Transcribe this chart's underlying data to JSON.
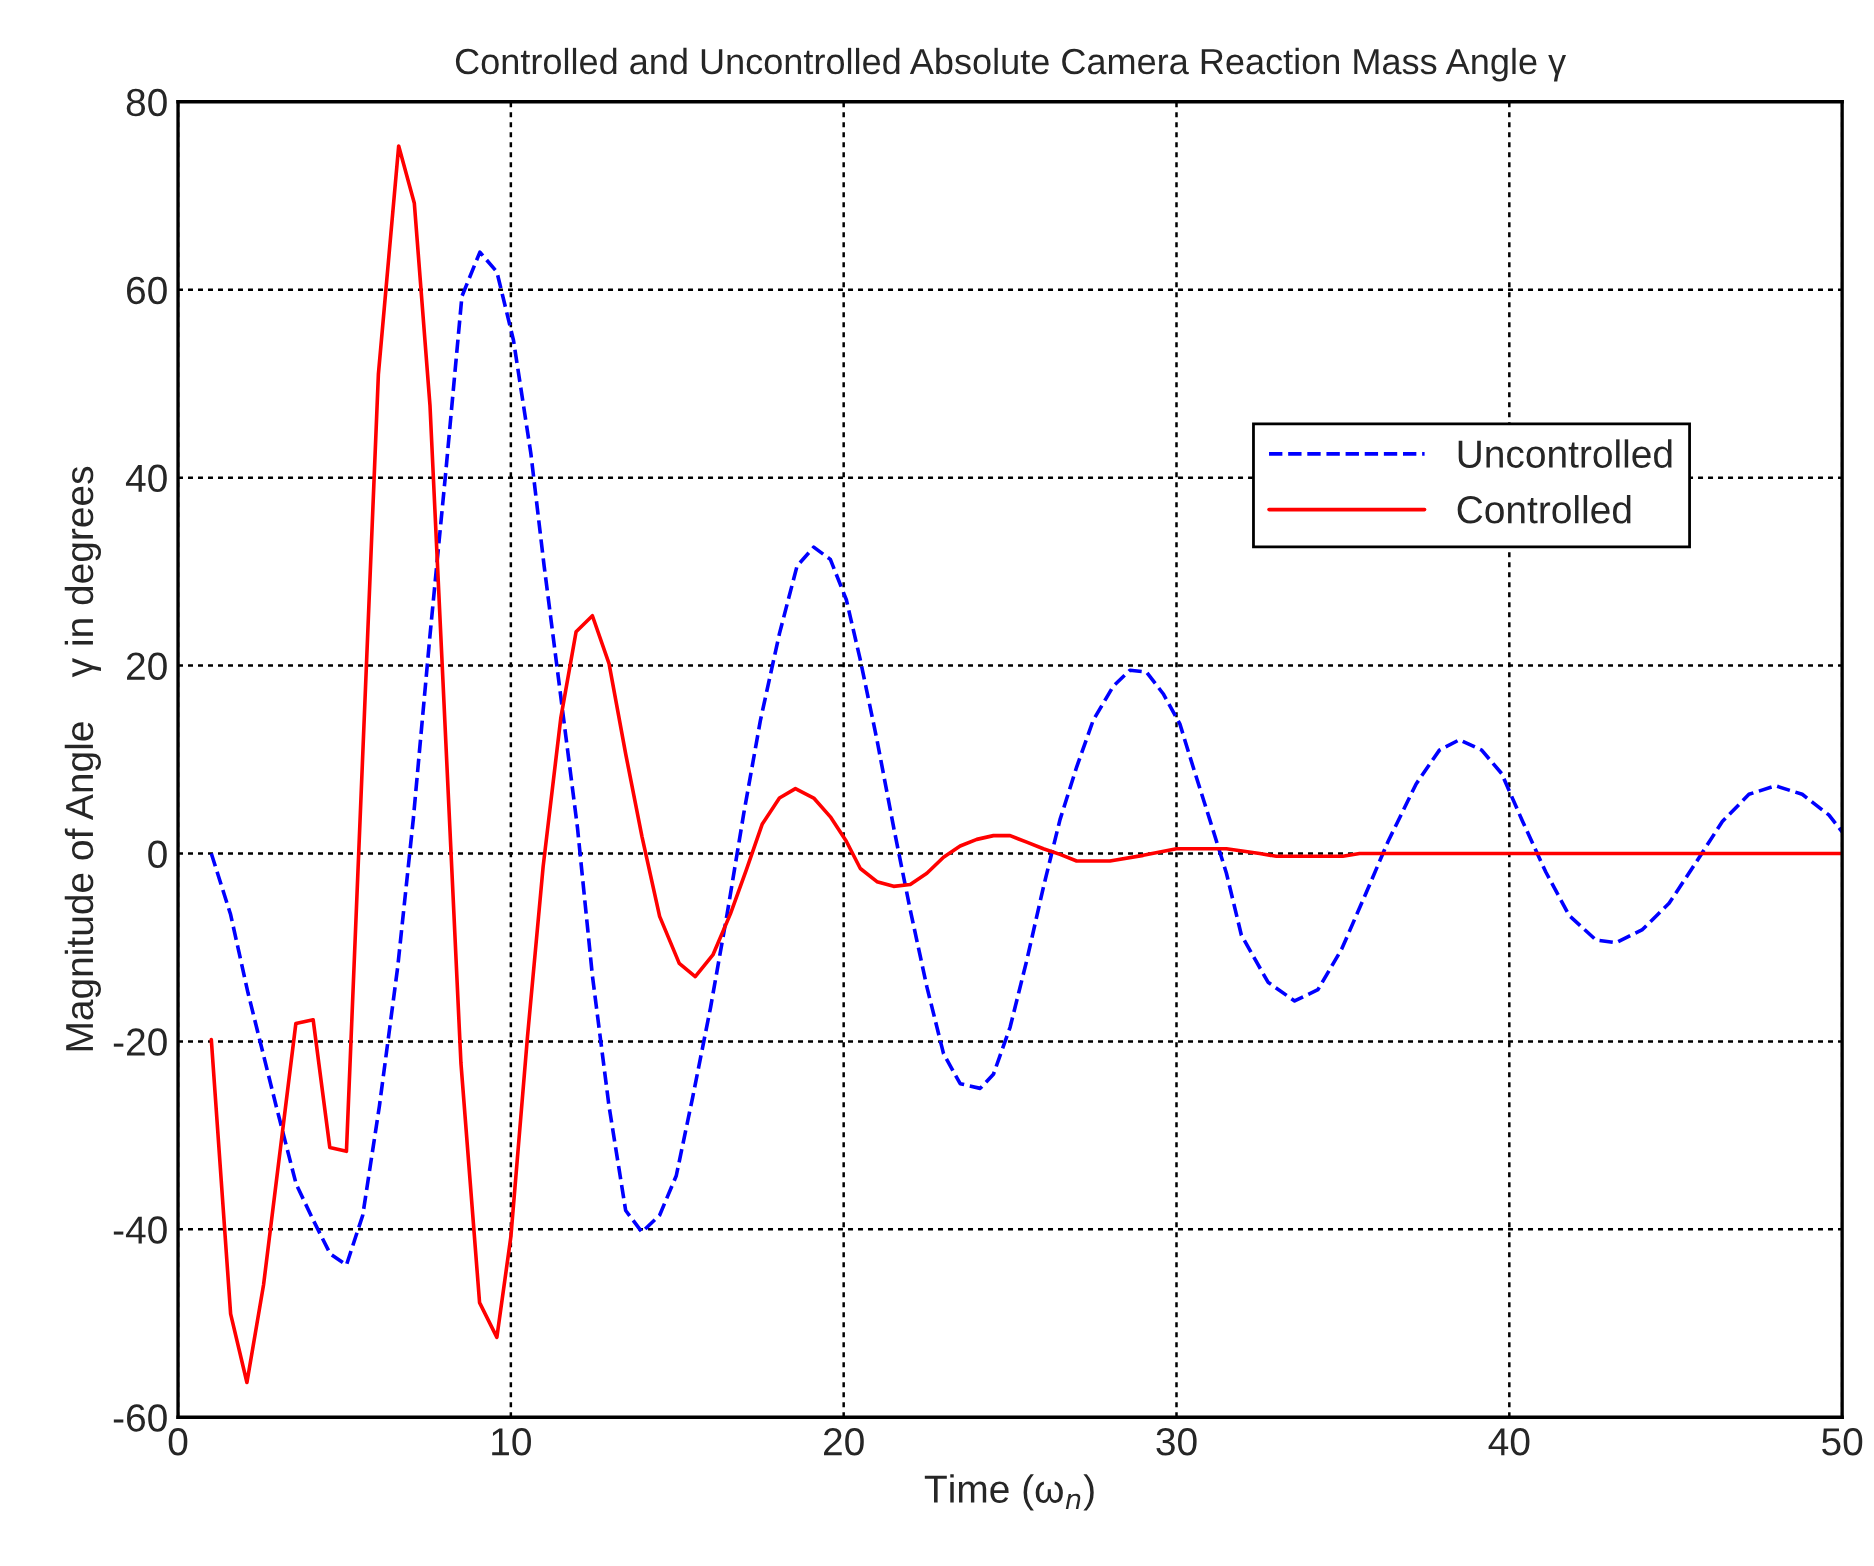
{
  "chart_data": {
    "type": "line",
    "title": "Controlled and Uncontrolled Absolute Camera Reaction Mass Angle γ",
    "xlabel": "Time (ω$_{n}$)",
    "ylabel": "Magnitude of Angle    γ in degrees",
    "xlim": [
      0,
      50
    ],
    "ylim": [
      -60,
      80
    ],
    "xticks": [
      0,
      10,
      20,
      30,
      40,
      50
    ],
    "yticks": [
      -60,
      -40,
      -20,
      0,
      20,
      40,
      60,
      80
    ],
    "grid": true,
    "legend": "top right",
    "marker": "none",
    "series": [
      {
        "name": "Uncontrolled",
        "color": "#0000ff",
        "line_style": "dashed",
        "x": [
          1.0,
          1.58,
          2.1,
          2.95,
          3.55,
          4.06,
          4.57,
          5.06,
          5.55,
          6.05,
          6.6,
          7.07,
          7.57,
          8.05,
          8.53,
          9.07,
          9.58,
          10.08,
          10.6,
          11.0,
          11.5,
          12.0,
          12.45,
          12.95,
          13.45,
          13.94,
          14.47,
          14.97,
          15.46,
          16.0,
          16.5,
          17.0,
          17.5,
          18.07,
          18.6,
          19.1,
          19.6,
          20.08,
          20.5,
          21.0,
          21.5,
          22.0,
          22.5,
          23.0,
          23.5,
          24.1,
          24.5,
          25.0,
          25.5,
          26.0,
          26.5,
          27.0,
          27.5,
          28.1,
          28.6,
          29.1,
          29.6,
          30.1,
          30.5,
          31.0,
          31.5,
          31.95,
          32.75,
          33.55,
          34.25,
          34.96,
          35.66,
          36.36,
          37.2,
          37.9,
          38.5,
          39.17,
          39.77,
          40.4,
          41.1,
          41.8,
          42.6,
          43.2,
          44.0,
          44.8,
          45.6,
          46.4,
          47.2,
          48.0,
          48.8,
          49.6,
          50.0
        ],
        "values": [
          0,
          -6.5,
          -14.8,
          -26.9,
          -35.2,
          -39,
          -42.6,
          -43.8,
          -38.5,
          -26.9,
          -12.1,
          3.7,
          23.2,
          40.8,
          59.3,
          64,
          61.9,
          54.6,
          42.6,
          30.6,
          16.7,
          2.8,
          -13,
          -26.9,
          -38,
          -40.3,
          -38.5,
          -34.3,
          -26,
          -16.4,
          -6.4,
          4.3,
          14.2,
          23.4,
          30.6,
          32.6,
          31.3,
          27,
          20.6,
          12.1,
          2.8,
          -6,
          -14.2,
          -21.3,
          -24.5,
          -25,
          -23.5,
          -18.5,
          -11.4,
          -3.6,
          3.6,
          9.2,
          14.2,
          17.8,
          19.5,
          19.3,
          17,
          13.8,
          9.2,
          3.6,
          -2.1,
          -8.7,
          -13.7,
          -15.7,
          -14.5,
          -10.2,
          -4.5,
          1.3,
          7.4,
          11,
          12.1,
          11,
          8.5,
          3.4,
          -2,
          -6.6,
          -9.2,
          -9.5,
          -8.1,
          -5.3,
          -1,
          3.4,
          6.3,
          7.2,
          6.3,
          4.1,
          2.3
        ]
      },
      {
        "name": "Controlled",
        "color": "#ff0000",
        "line_style": "solid",
        "x": [
          1.0,
          1.58,
          2.07,
          2.57,
          3.54,
          4.06,
          4.56,
          5.06,
          6.02,
          6.63,
          7.1,
          7.57,
          8.5,
          9.06,
          9.58,
          10.0,
          10.5,
          10.97,
          11.5,
          11.96,
          12.45,
          12.95,
          13.45,
          13.94,
          14.47,
          15.06,
          15.54,
          16.07,
          16.6,
          17.07,
          17.55,
          18.07,
          18.55,
          19.1,
          19.6,
          20.08,
          20.5,
          21.0,
          21.5,
          22.0,
          22.5,
          23.0,
          23.5,
          24.0,
          24.5,
          25.0,
          25.5,
          26.0,
          26.5,
          27.0,
          28.0,
          29.0,
          30.0,
          31.5,
          32.5,
          33.0,
          35.0,
          35.5,
          38.0,
          41.0,
          44.0,
          47.0,
          50.0
        ],
        "values": [
          -19.8,
          -49,
          -56.3,
          -45.9,
          -18.1,
          -17.7,
          -31.3,
          -31.7,
          51,
          75.3,
          69.2,
          47.7,
          -22.3,
          -47.8,
          -51.5,
          -40.8,
          -19.5,
          -1.4,
          14.4,
          23.6,
          25.3,
          20.2,
          10.6,
          1.8,
          -6.7,
          -11.7,
          -13.1,
          -10.8,
          -6.4,
          -1.8,
          3.1,
          5.9,
          6.9,
          5.9,
          3.9,
          1.3,
          -1.6,
          -3,
          -3.5,
          -3.3,
          -2.1,
          -0.4,
          0.8,
          1.5,
          1.9,
          1.9,
          1.2,
          0.5,
          -0.1,
          -0.8,
          -0.8,
          -0.2,
          0.5,
          0.5,
          0,
          -0.3,
          -0.3,
          0,
          0,
          0,
          0,
          0,
          0
        ]
      }
    ]
  }
}
